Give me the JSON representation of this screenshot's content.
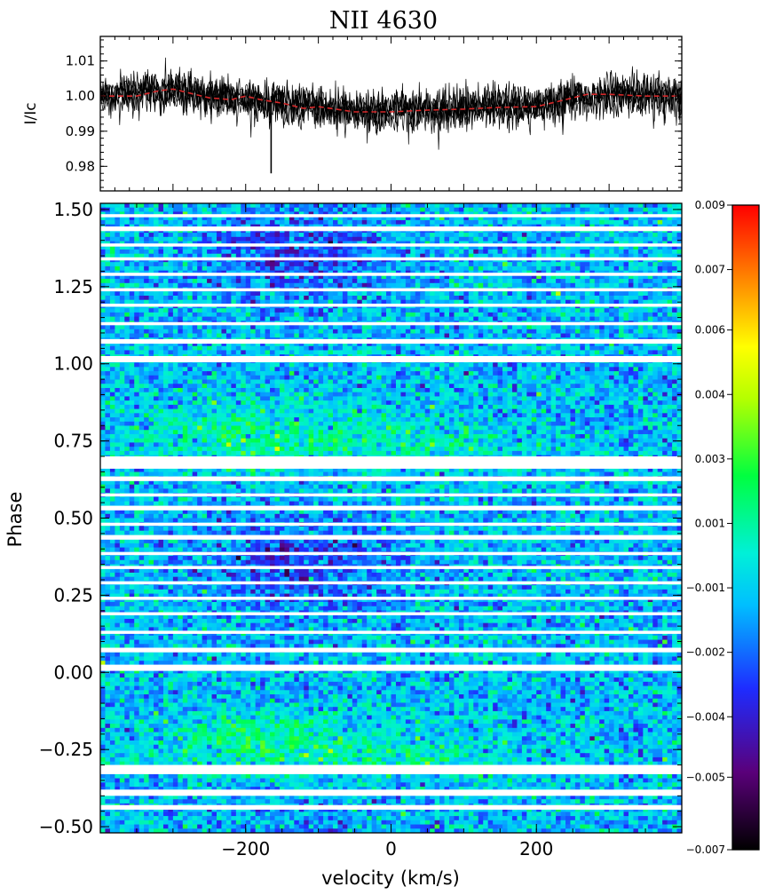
{
  "chart_data": [
    {
      "type": "line",
      "title": "NII  4630",
      "xlabel": "",
      "ylabel": "I/Ic",
      "xlim": [
        -400,
        400
      ],
      "ylim": [
        0.973,
        1.017
      ],
      "y_ticks": [
        "0.98",
        "0.99",
        "1.00",
        "1.01"
      ],
      "y_tick_values": [
        0.98,
        0.99,
        1.0,
        1.01
      ],
      "series": [
        {
          "color": "#000000",
          "style": "noisy overplotted spectra",
          "x": [
            -400,
            -350,
            -300,
            -250,
            -200,
            -170,
            -150,
            -100,
            -50,
            0,
            50,
            100,
            150,
            200,
            250,
            300,
            350,
            400
          ],
          "values": [
            1.0,
            1.001,
            1.002,
            1.0,
            0.999,
            0.998,
            0.998,
            0.997,
            0.996,
            0.996,
            0.996,
            0.996,
            0.997,
            0.997,
            0.999,
            1.001,
            1.0,
            1.0
          ],
          "spike": {
            "x": -165,
            "min": 0.978
          }
        },
        {
          "color": "#d62728",
          "style": "dashed mean profile",
          "x": [
            -400,
            -350,
            -320,
            -300,
            -280,
            -250,
            -220,
            -200,
            -180,
            -150,
            -120,
            -100,
            -50,
            0,
            50,
            100,
            150,
            200,
            240,
            270,
            300,
            350,
            400
          ],
          "values": [
            1.0,
            1.0,
            1.0015,
            1.002,
            1.001,
            0.9995,
            0.999,
            1.0,
            0.999,
            0.998,
            0.9965,
            0.997,
            0.9955,
            0.9955,
            0.996,
            0.9963,
            0.9968,
            0.997,
            0.999,
            1.0005,
            1.0005,
            1.0,
            1.0
          ]
        }
      ]
    },
    {
      "type": "heatmap",
      "xlabel": "velocity (km/s)",
      "ylabel": "Phase",
      "xlim": [
        -400,
        400
      ],
      "ylim": [
        -0.52,
        1.52
      ],
      "x_ticks": [
        "−200",
        "0",
        "200"
      ],
      "x_tick_values": [
        -200,
        0,
        200
      ],
      "y_ticks": [
        "−0.50",
        "−0.25",
        "0.00",
        "0.25",
        "0.50",
        "0.75",
        "1.00",
        "1.25",
        "1.50"
      ],
      "y_tick_values": [
        -0.5,
        -0.25,
        0.0,
        0.25,
        0.5,
        0.75,
        1.0,
        1.25,
        1.5
      ],
      "phase_gaps": [
        [
          -0.445,
          -0.43
        ],
        [
          -0.4,
          -0.38
        ],
        [
          -0.33,
          -0.3
        ],
        [
          0.005,
          0.025
        ],
        [
          0.065,
          0.08
        ],
        [
          0.125,
          0.135
        ],
        [
          0.185,
          0.195
        ],
        [
          0.235,
          0.245
        ],
        [
          0.285,
          0.295
        ],
        [
          0.335,
          0.345
        ],
        [
          0.38,
          0.39
        ],
        [
          0.43,
          0.445
        ],
        [
          0.475,
          0.485
        ],
        [
          0.525,
          0.54
        ],
        [
          0.57,
          0.58
        ],
        [
          0.62,
          0.635
        ],
        [
          0.66,
          0.7
        ],
        [
          1.005,
          1.025
        ],
        [
          1.065,
          1.08
        ],
        [
          1.125,
          1.135
        ],
        [
          1.185,
          1.195
        ],
        [
          1.235,
          1.245
        ],
        [
          1.285,
          1.295
        ],
        [
          1.335,
          1.345
        ],
        [
          1.38,
          1.39
        ],
        [
          1.43,
          1.445
        ],
        [
          1.475,
          1.485
        ]
      ],
      "colorbar": {
        "min": -0.007,
        "max": 0.009,
        "tick_labels": [
          "0.009",
          "0.007",
          "0.006",
          "0.004",
          "0.003",
          "0.001",
          "−0.001",
          "−0.002",
          "−0.004",
          "−0.005",
          "−0.007"
        ],
        "tick_values": [
          0.009,
          0.0074,
          0.0059,
          0.0043,
          0.0027,
          0.0011,
          -0.0005,
          -0.0021,
          -0.0037,
          -0.0052,
          -0.007
        ]
      }
    }
  ]
}
